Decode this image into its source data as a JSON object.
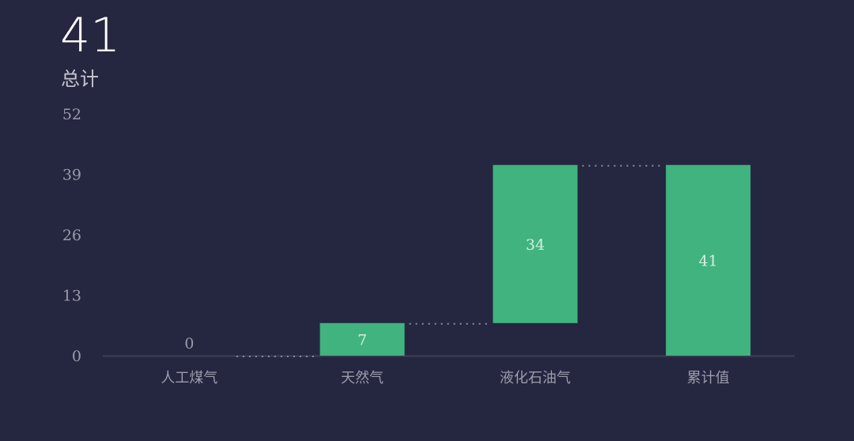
{
  "kpi": {
    "value": "41",
    "label": "总计"
  },
  "chart_data": {
    "type": "waterfall",
    "categories": [
      "人工煤气",
      "天然气",
      "液化石油气",
      "累计值"
    ],
    "values": [
      0,
      7,
      34,
      41
    ],
    "total_category": "累计值",
    "y_ticks": [
      0,
      13,
      26,
      39,
      52
    ],
    "ylim": [
      0,
      52
    ],
    "grid": false,
    "colors": {
      "bar": "#41b37f",
      "background": "#252740",
      "connector": "#8a8c9c"
    }
  }
}
